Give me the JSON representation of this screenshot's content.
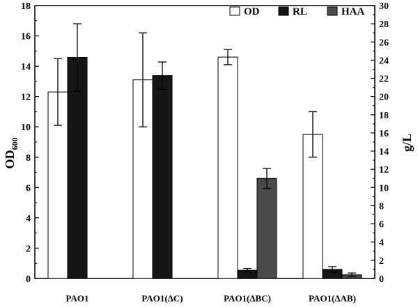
{
  "chart_data": {
    "type": "bar",
    "categories": [
      "PAO1",
      "PAO1(ΔC)",
      "PAO1(ΔBC)",
      "PAO1(ΔAB)"
    ],
    "left_axis": {
      "label": "OD",
      "label_sub": "600",
      "ylim": [
        0,
        18
      ],
      "ticks": [
        "0",
        "2",
        "4",
        "6",
        "8",
        "10",
        "12",
        "14",
        "16",
        "18"
      ]
    },
    "right_axis": {
      "label": "g/L",
      "ylim": [
        0,
        30
      ],
      "ticks": [
        "0",
        "2",
        "4",
        "6",
        "8",
        "10",
        "12",
        "14",
        "16",
        "18",
        "20",
        "22",
        "24",
        "26",
        "28",
        "30"
      ]
    },
    "series": [
      {
        "name": "OD",
        "axis": "left",
        "color": "#ffffff",
        "values": [
          12.3,
          13.1,
          14.6,
          9.5
        ],
        "errors": [
          2.2,
          3.1,
          0.5,
          1.5
        ]
      },
      {
        "name": "RL",
        "axis": "right",
        "color": "#151515",
        "values": [
          24.3,
          22.3,
          0.9,
          1.0
        ],
        "errors": [
          3.7,
          1.5,
          0.2,
          0.3
        ]
      },
      {
        "name": "HAA",
        "axis": "right",
        "color": "#4a4a4a",
        "values": [
          null,
          null,
          11.0,
          0.4
        ],
        "errors": [
          null,
          null,
          1.1,
          0.2
        ]
      }
    ],
    "legend": {
      "placement": "top-right"
    },
    "grid": false
  }
}
